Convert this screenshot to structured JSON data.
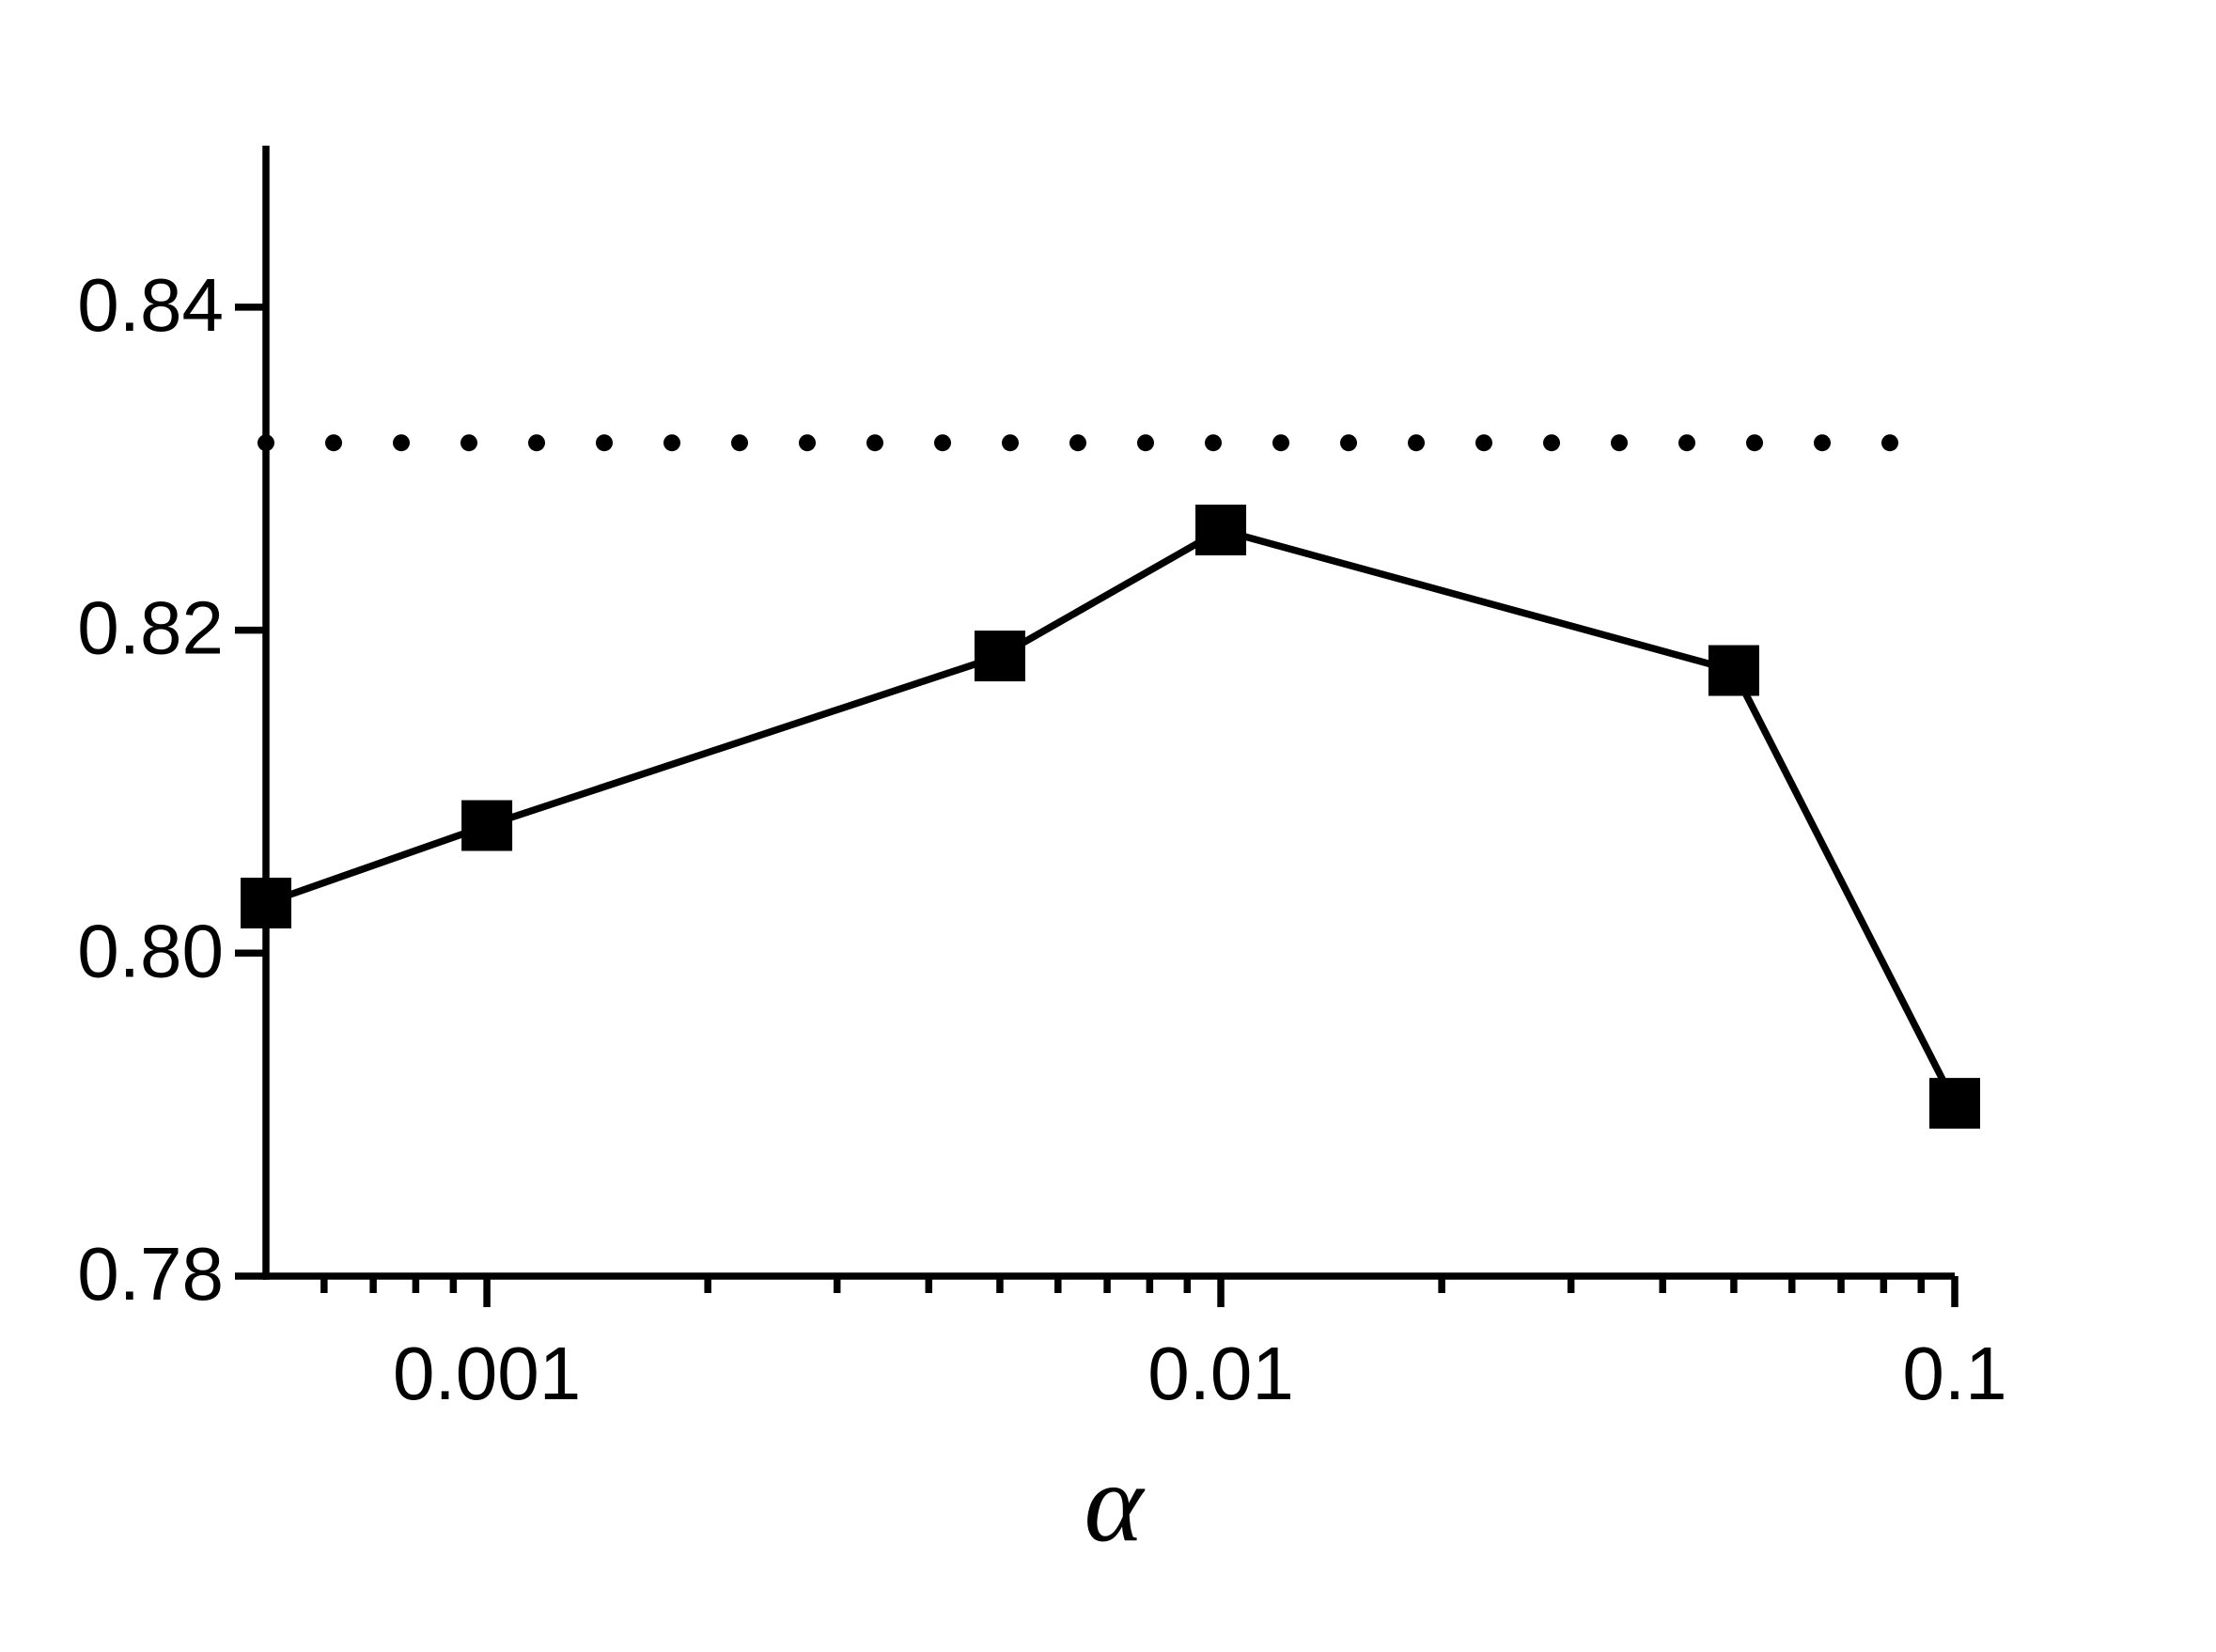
{
  "chart_data": {
    "type": "line",
    "x": [
      0.0005,
      0.001,
      0.005,
      0.01,
      0.05,
      0.1
    ],
    "series": [
      {
        "color": "#000000",
        "marker": "square",
        "values": [
          0.8031,
          0.8079,
          0.8184,
          0.8262,
          0.8175,
          0.7907
        ]
      }
    ],
    "reference_line": {
      "value": 0.8316,
      "style": "dotted",
      "color": "#000000"
    },
    "xlabel": "α",
    "xscale": "log",
    "xlim": [
      0.0005,
      0.1
    ],
    "xticks": [
      0.001,
      0.01,
      0.1
    ],
    "xminorticks": [
      0.0006,
      0.0007,
      0.0008,
      0.0009,
      0.002,
      0.003,
      0.004,
      0.005,
      0.006,
      0.007,
      0.008,
      0.009,
      0.02,
      0.03,
      0.04,
      0.05,
      0.06,
      0.07,
      0.08,
      0.09
    ],
    "ylim": [
      0.78,
      0.85
    ],
    "yticks": [
      {
        "value": 0.78,
        "label": "0.78"
      },
      {
        "value": 0.8,
        "label": "0.80"
      },
      {
        "value": 0.82,
        "label": "0.82"
      },
      {
        "value": 0.84,
        "label": "0.84"
      }
    ],
    "grid": false
  }
}
